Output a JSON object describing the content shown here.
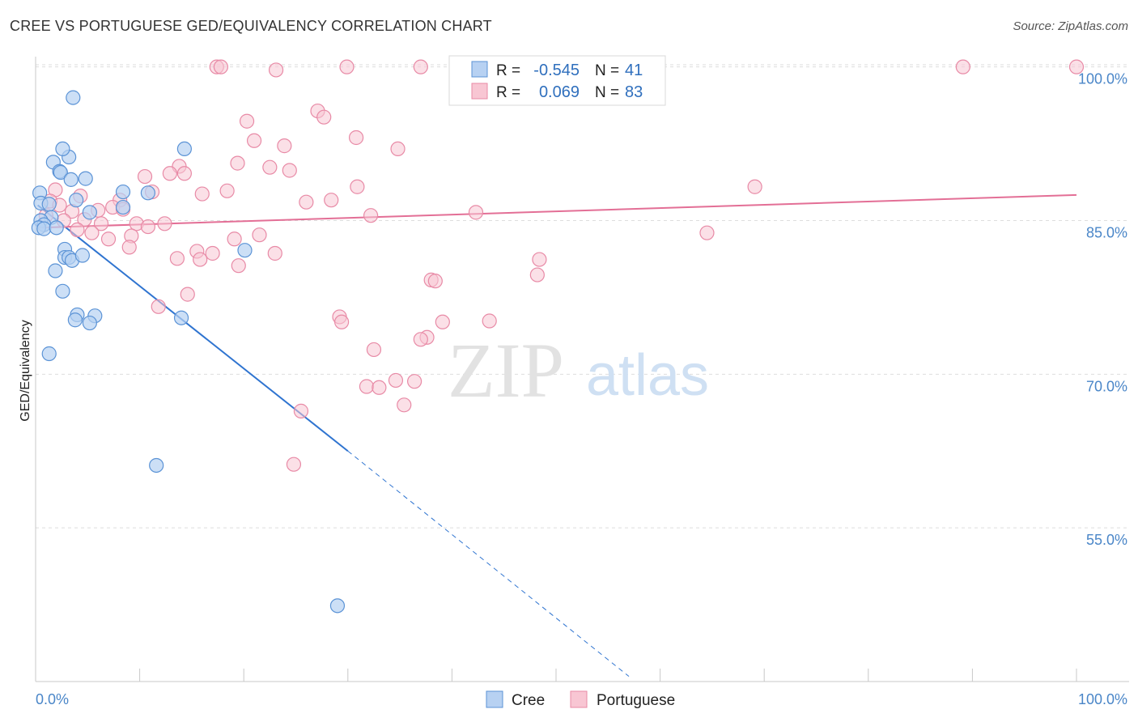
{
  "header": {
    "title": "CREE VS PORTUGUESE GED/EQUIVALENCY CORRELATION CHART",
    "source": "Source: ZipAtlas.com"
  },
  "colors": {
    "cree_fill": "#b7d1f2",
    "cree_stroke": "#5b93d6",
    "cree_line": "#2f74d0",
    "portuguese_fill": "#f8c6d3",
    "portuguese_stroke": "#e88aa6",
    "portuguese_line": "#e36f96",
    "axis_text": "#4a86c8",
    "grid": "#dddddd"
  },
  "watermark": {
    "zip": "ZIP",
    "atlas": "atlas"
  },
  "legend": {
    "cree": {
      "r_label": "R =",
      "r_value": "-0.545",
      "n_label": "N =",
      "n_value": "41"
    },
    "portuguese": {
      "r_label": "R =",
      "r_value": "0.069",
      "n_label": "N =",
      "n_value": "83"
    }
  },
  "chart_data": {
    "type": "scatter",
    "xlabel": "",
    "ylabel": "GED/Equivalency",
    "xlim": [
      0,
      100
    ],
    "ylim": [
      40,
      101
    ],
    "x_tick_labels": [
      "0.0%",
      "100.0%"
    ],
    "y_ticks": [
      55,
      70,
      85,
      100
    ],
    "y_tick_labels": [
      "55.0%",
      "70.0%",
      "85.0%",
      "100.0%"
    ],
    "grid": "horizontal dashed",
    "legend_position": "top-center",
    "series": [
      {
        "name": "Cree",
        "color": "#5b93d6",
        "trend": {
          "x": [
            0.2,
            30.0
          ],
          "y": [
            86.5,
            62.5
          ],
          "dashed_extension_to": [
            57.0,
            40.5
          ]
        },
        "points": [
          [
            3.6,
            97.0
          ],
          [
            1.7,
            90.7
          ],
          [
            3.2,
            91.2
          ],
          [
            2.6,
            92.0
          ],
          [
            14.3,
            92.0
          ],
          [
            2.3,
            89.8
          ],
          [
            2.4,
            89.7
          ],
          [
            3.4,
            89.0
          ],
          [
            4.8,
            89.1
          ],
          [
            8.4,
            87.8
          ],
          [
            10.8,
            87.7
          ],
          [
            3.9,
            87.0
          ],
          [
            0.4,
            87.7
          ],
          [
            0.5,
            86.7
          ],
          [
            1.3,
            86.6
          ],
          [
            8.4,
            86.3
          ],
          [
            5.2,
            85.8
          ],
          [
            1.5,
            85.3
          ],
          [
            0.5,
            85.0
          ],
          [
            0.8,
            84.6
          ],
          [
            0.3,
            84.3
          ],
          [
            0.8,
            84.2
          ],
          [
            2.0,
            84.3
          ],
          [
            2.8,
            82.2
          ],
          [
            20.1,
            82.1
          ],
          [
            2.8,
            81.4
          ],
          [
            3.2,
            81.4
          ],
          [
            3.5,
            81.1
          ],
          [
            4.5,
            81.6
          ],
          [
            1.9,
            80.1
          ],
          [
            2.6,
            78.1
          ],
          [
            4.0,
            75.8
          ],
          [
            5.7,
            75.7
          ],
          [
            3.8,
            75.3
          ],
          [
            5.2,
            75.0
          ],
          [
            14.0,
            75.5
          ],
          [
            1.3,
            72.0
          ],
          [
            11.6,
            61.1
          ],
          [
            29.0,
            47.4
          ]
        ]
      },
      {
        "name": "Portuguese",
        "color": "#e88aa6",
        "trend": {
          "x": [
            0.2,
            100.0
          ],
          "y": [
            84.3,
            87.5
          ]
        },
        "points": [
          [
            17.4,
            100.0
          ],
          [
            17.8,
            100.0
          ],
          [
            23.1,
            99.7
          ],
          [
            29.9,
            100.0
          ],
          [
            37.0,
            100.0
          ],
          [
            89.1,
            100.0
          ],
          [
            100.0,
            100.0
          ],
          [
            27.1,
            95.7
          ],
          [
            27.7,
            95.1
          ],
          [
            20.3,
            94.7
          ],
          [
            30.8,
            93.1
          ],
          [
            21.0,
            92.8
          ],
          [
            23.9,
            92.3
          ],
          [
            34.8,
            92.0
          ],
          [
            19.4,
            90.6
          ],
          [
            13.8,
            90.3
          ],
          [
            22.5,
            90.2
          ],
          [
            24.4,
            89.9
          ],
          [
            12.9,
            89.6
          ],
          [
            14.3,
            89.6
          ],
          [
            10.5,
            89.3
          ],
          [
            30.9,
            88.3
          ],
          [
            69.1,
            88.3
          ],
          [
            1.9,
            88.0
          ],
          [
            16.0,
            87.6
          ],
          [
            18.4,
            87.9
          ],
          [
            11.2,
            87.8
          ],
          [
            4.3,
            87.4
          ],
          [
            8.1,
            87.0
          ],
          [
            1.4,
            86.9
          ],
          [
            26.0,
            86.8
          ],
          [
            28.4,
            87.0
          ],
          [
            2.3,
            86.5
          ],
          [
            7.4,
            86.3
          ],
          [
            8.4,
            86.1
          ],
          [
            3.5,
            85.9
          ],
          [
            6.0,
            86.0
          ],
          [
            32.2,
            85.5
          ],
          [
            42.3,
            85.8
          ],
          [
            1.0,
            85.5
          ],
          [
            2.7,
            85.0
          ],
          [
            4.7,
            85.1
          ],
          [
            6.3,
            84.7
          ],
          [
            9.7,
            84.7
          ],
          [
            10.8,
            84.4
          ],
          [
            12.4,
            84.7
          ],
          [
            4.0,
            84.1
          ],
          [
            5.4,
            83.8
          ],
          [
            64.5,
            83.8
          ],
          [
            21.5,
            83.6
          ],
          [
            9.2,
            83.5
          ],
          [
            19.1,
            83.2
          ],
          [
            7.0,
            83.2
          ],
          [
            9.0,
            82.4
          ],
          [
            15.5,
            82.0
          ],
          [
            17.0,
            81.8
          ],
          [
            23.0,
            81.8
          ],
          [
            13.6,
            81.3
          ],
          [
            15.8,
            81.2
          ],
          [
            48.4,
            81.2
          ],
          [
            19.5,
            80.6
          ],
          [
            48.2,
            79.7
          ],
          [
            38.0,
            79.2
          ],
          [
            38.4,
            79.1
          ],
          [
            14.6,
            77.8
          ],
          [
            11.8,
            76.6
          ],
          [
            29.2,
            75.6
          ],
          [
            29.4,
            75.1
          ],
          [
            39.1,
            75.1
          ],
          [
            43.6,
            75.2
          ],
          [
            37.6,
            73.6
          ],
          [
            37.0,
            73.4
          ],
          [
            32.5,
            72.4
          ],
          [
            34.6,
            69.4
          ],
          [
            36.4,
            69.3
          ],
          [
            31.8,
            68.8
          ],
          [
            33.0,
            68.7
          ],
          [
            35.4,
            67.0
          ],
          [
            25.5,
            66.4
          ],
          [
            24.8,
            61.2
          ]
        ]
      }
    ]
  }
}
